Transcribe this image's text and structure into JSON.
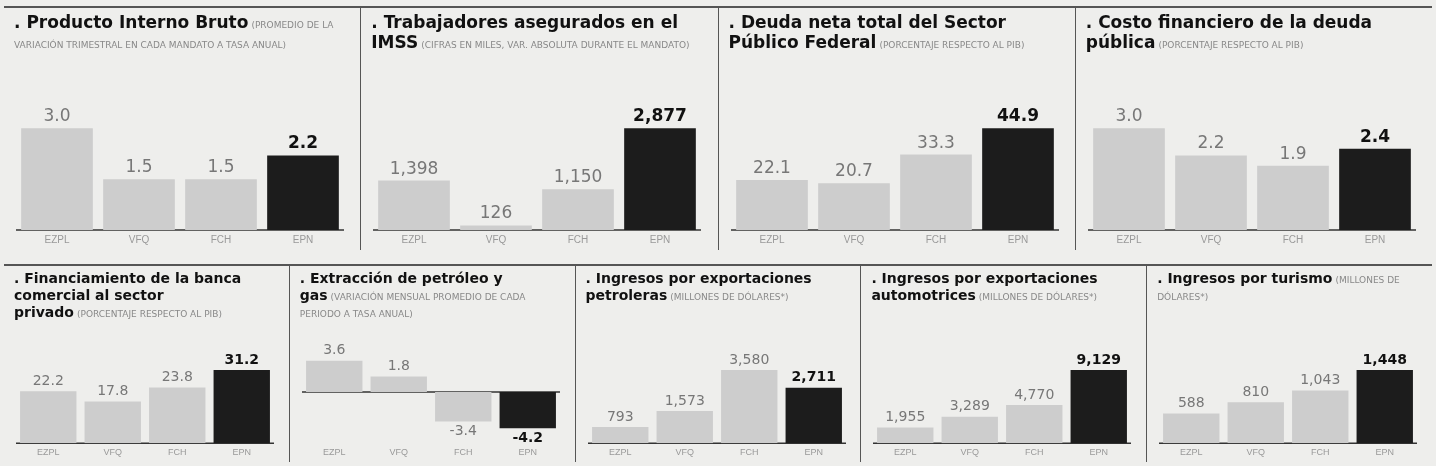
{
  "chart_data": [
    {
      "type": "bar",
      "title": ". Producto Interno Bruto",
      "subtitle": "(PROMEDIO DE LA VARIACIÓN TRIMESTRAL EN CADA MANDATO A TASA ANUAL)",
      "categories": [
        "EZPL",
        "VFQ",
        "FCH",
        "EPN"
      ],
      "values": [
        3.0,
        1.5,
        1.5,
        2.2
      ],
      "value_labels": [
        "3.0",
        "1.5",
        "1.5",
        "2.2"
      ],
      "colors": [
        "#cdcdcd",
        "#cdcdcd",
        "#cdcdcd",
        "#1c1c1c"
      ],
      "grid": false,
      "legend": false
    },
    {
      "type": "bar",
      "title": ". Trabajadores asegurados en el IMSS",
      "subtitle": "(CIFRAS EN MILES, VAR. ABSOLUTA DURANTE EL MANDATO)",
      "categories": [
        "EZPL",
        "VFQ",
        "FCH",
        "EPN"
      ],
      "values": [
        1398,
        126,
        1150,
        2877
      ],
      "value_labels": [
        "1,398",
        "126",
        "1,150",
        "2,877"
      ],
      "colors": [
        "#cdcdcd",
        "#cdcdcd",
        "#cdcdcd",
        "#1c1c1c"
      ],
      "grid": false,
      "legend": false
    },
    {
      "type": "bar",
      "title": ". Deuda neta total del Sector Público Federal",
      "subtitle": "(PORCENTAJE RESPECTO AL PIB)",
      "categories": [
        "EZPL",
        "VFQ",
        "FCH",
        "EPN"
      ],
      "values": [
        22.1,
        20.7,
        33.3,
        44.9
      ],
      "value_labels": [
        "22.1",
        "20.7",
        "33.3",
        "44.9"
      ],
      "colors": [
        "#cdcdcd",
        "#cdcdcd",
        "#cdcdcd",
        "#1c1c1c"
      ],
      "grid": false,
      "legend": false
    },
    {
      "type": "bar",
      "title": ". Costo financiero de la deuda pública",
      "subtitle": "(PORCENTAJE RESPECTO AL PIB)",
      "categories": [
        "EZPL",
        "VFQ",
        "FCH",
        "EPN"
      ],
      "values": [
        3.0,
        2.2,
        1.9,
        2.4
      ],
      "value_labels": [
        "3.0",
        "2.2",
        "1.9",
        "2.4"
      ],
      "colors": [
        "#cdcdcd",
        "#cdcdcd",
        "#cdcdcd",
        "#1c1c1c"
      ],
      "grid": false,
      "legend": false
    },
    {
      "type": "bar",
      "title": ". Financiamiento de la banca comercial al sector privado",
      "subtitle": "(PORCENTAJE RESPECTO AL PIB)",
      "categories": [
        "EZPL",
        "VFQ",
        "FCH",
        "EPN"
      ],
      "values": [
        22.2,
        17.8,
        23.8,
        31.2
      ],
      "value_labels": [
        "22.2",
        "17.8",
        "23.8",
        "31.2"
      ],
      "colors": [
        "#cdcdcd",
        "#cdcdcd",
        "#cdcdcd",
        "#1c1c1c"
      ],
      "grid": false,
      "legend": false
    },
    {
      "type": "bar",
      "title": ". Extracción de petróleo y gas",
      "subtitle": "(VARIACIÓN MENSUAL PROMEDIO DE CADA PERIODO A TASA ANUAL)",
      "categories": [
        "EZPL",
        "VFQ",
        "FCH",
        "EPN"
      ],
      "values": [
        3.6,
        1.8,
        -3.4,
        -4.2
      ],
      "value_labels": [
        "3.6",
        "1.8",
        "-3.4",
        "-4.2"
      ],
      "colors": [
        "#cdcdcd",
        "#cdcdcd",
        "#cdcdcd",
        "#1c1c1c"
      ],
      "grid": false,
      "legend": false
    },
    {
      "type": "bar",
      "title": ". Ingresos por exportaciones petroleras",
      "subtitle": "(MILLONES DE DÓLARES*)",
      "categories": [
        "EZPL",
        "VFQ",
        "FCH",
        "EPN"
      ],
      "values": [
        793,
        1573,
        3580,
        2711
      ],
      "value_labels": [
        "793",
        "1,573",
        "3,580",
        "2,711"
      ],
      "colors": [
        "#cdcdcd",
        "#cdcdcd",
        "#cdcdcd",
        "#1c1c1c"
      ],
      "grid": false,
      "legend": false
    },
    {
      "type": "bar",
      "title": ". Ingresos por exportaciones automotrices",
      "subtitle": "(MILLONES DE DÓLARES*)",
      "categories": [
        "EZPL",
        "VFQ",
        "FCH",
        "EPN"
      ],
      "values": [
        1955,
        3289,
        4770,
        9129
      ],
      "value_labels": [
        "1,955",
        "3,289",
        "4,770",
        "9,129"
      ],
      "colors": [
        "#cdcdcd",
        "#cdcdcd",
        "#cdcdcd",
        "#1c1c1c"
      ],
      "grid": false,
      "legend": false
    },
    {
      "type": "bar",
      "title": ". Ingresos por turismo",
      "subtitle": "(MILLONES DE DÓLARES*)",
      "categories": [
        "EZPL",
        "VFQ",
        "FCH",
        "EPN"
      ],
      "values": [
        588,
        810,
        1043,
        1448
      ],
      "value_labels": [
        "588",
        "810",
        "1,043",
        "1,448"
      ],
      "colors": [
        "#cdcdcd",
        "#cdcdcd",
        "#cdcdcd",
        "#1c1c1c"
      ],
      "grid": false,
      "legend": false
    }
  ]
}
